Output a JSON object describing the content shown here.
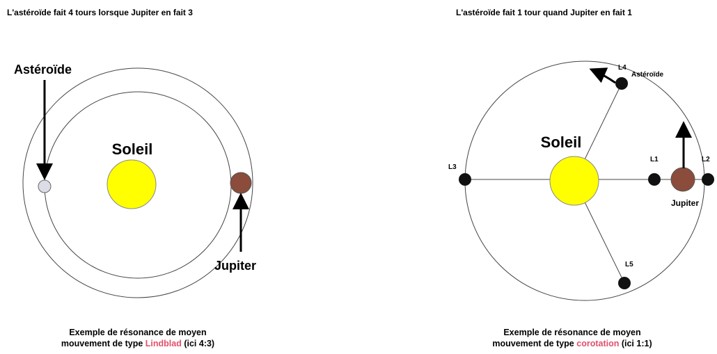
{
  "left": {
    "title": "L'astéroïde fait 4 tours lorsque Jupiter en fait 3",
    "sun": "Soleil",
    "asteroid": "Astéroïde",
    "jupiter": "Jupiter",
    "caption": {
      "line1": "Exemple de résonance de moyen",
      "before": "mouvement de type",
      "highlight": "Lindblad",
      "after": "(ici 4:3)"
    }
  },
  "right": {
    "title": "L'astéroïde fait 1 tour quand Jupiter en fait 1",
    "sun": "Soleil",
    "asteroid": "Astéroïde",
    "jupiter": "Jupiter",
    "points": {
      "l1": "L1",
      "l2": "L2",
      "l3": "L3",
      "l4": "L4",
      "l5": "L5"
    },
    "caption": {
      "line1": "Exemple de résonance de moyen",
      "before": "mouvement de type",
      "highlight": "corotation",
      "after": "(ici 1:1)"
    }
  }
}
